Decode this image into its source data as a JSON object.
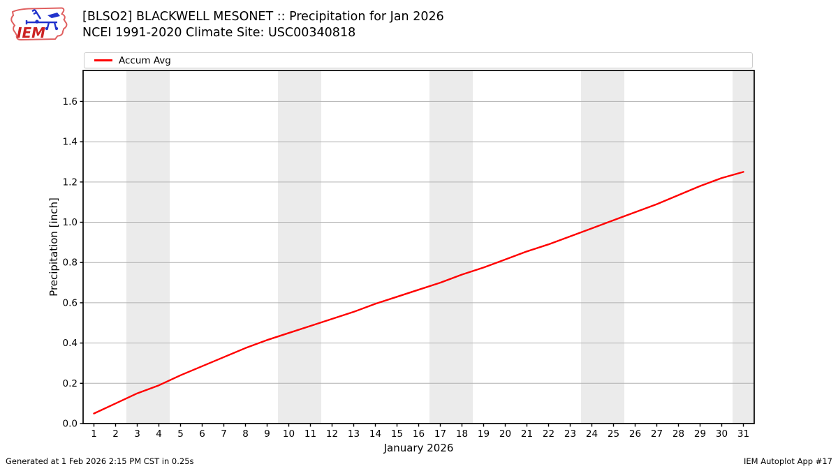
{
  "header": {
    "title_line1": "[BLSO2] BLACKWELL MESONET :: Precipitation for Jan 2026",
    "title_line2": "NCEI 1991-2020 Climate Site: USC00340818",
    "logo_text": "IEM"
  },
  "legend": {
    "items": [
      {
        "label": "Accum Avg",
        "color": "#ff0000"
      }
    ]
  },
  "footer": {
    "left": "Generated at 1 Feb 2026 2:15 PM CST in 0.25s",
    "right": "IEM Autoplot App #17"
  },
  "chart_data": {
    "type": "line",
    "title": "[BLSO2] BLACKWELL MESONET :: Precipitation for Jan 2026",
    "subtitle": "NCEI 1991-2020 Climate Site: USC00340818",
    "xlabel": "January 2026",
    "ylabel": "Precipitation [inch]",
    "xlim": [
      0.5,
      31.5
    ],
    "ylim": [
      0,
      1.754
    ],
    "grid": "horizontal",
    "legend_position": "top",
    "x": [
      1,
      2,
      3,
      4,
      5,
      6,
      7,
      8,
      9,
      10,
      11,
      12,
      13,
      14,
      15,
      16,
      17,
      18,
      19,
      20,
      21,
      22,
      23,
      24,
      25,
      26,
      27,
      28,
      29,
      30,
      31
    ],
    "xtick_labels": [
      "1",
      "2",
      "3",
      "4",
      "5",
      "6",
      "7",
      "8",
      "9",
      "10",
      "11",
      "12",
      "13",
      "14",
      "15",
      "16",
      "17",
      "18",
      "19",
      "20",
      "21",
      "22",
      "23",
      "24",
      "25",
      "26",
      "27",
      "28",
      "29",
      "30",
      "31"
    ],
    "yticks": [
      0.0,
      0.2,
      0.4,
      0.6,
      0.8,
      1.0,
      1.2,
      1.4,
      1.6
    ],
    "ytick_labels": [
      "0.0",
      "0.2",
      "0.4",
      "0.6",
      "0.8",
      "1.0",
      "1.2",
      "1.4",
      "1.6"
    ],
    "series": [
      {
        "name": "Accum Avg",
        "color": "#ff0000",
        "values": [
          0.05,
          0.1,
          0.15,
          0.19,
          0.24,
          0.285,
          0.33,
          0.375,
          0.415,
          0.45,
          0.485,
          0.52,
          0.555,
          0.595,
          0.63,
          0.665,
          0.7,
          0.74,
          0.775,
          0.815,
          0.855,
          0.89,
          0.93,
          0.97,
          1.01,
          1.05,
          1.09,
          1.135,
          1.18,
          1.22,
          1.25
        ]
      }
    ],
    "weekend_bands": [
      [
        2.5,
        4.5
      ],
      [
        9.5,
        11.5
      ],
      [
        16.5,
        18.5
      ],
      [
        23.5,
        25.5
      ],
      [
        30.5,
        31.5
      ]
    ],
    "band_color": "#ebebeb",
    "grid_color": "#b0b0b0",
    "spine_color": "#000000"
  }
}
